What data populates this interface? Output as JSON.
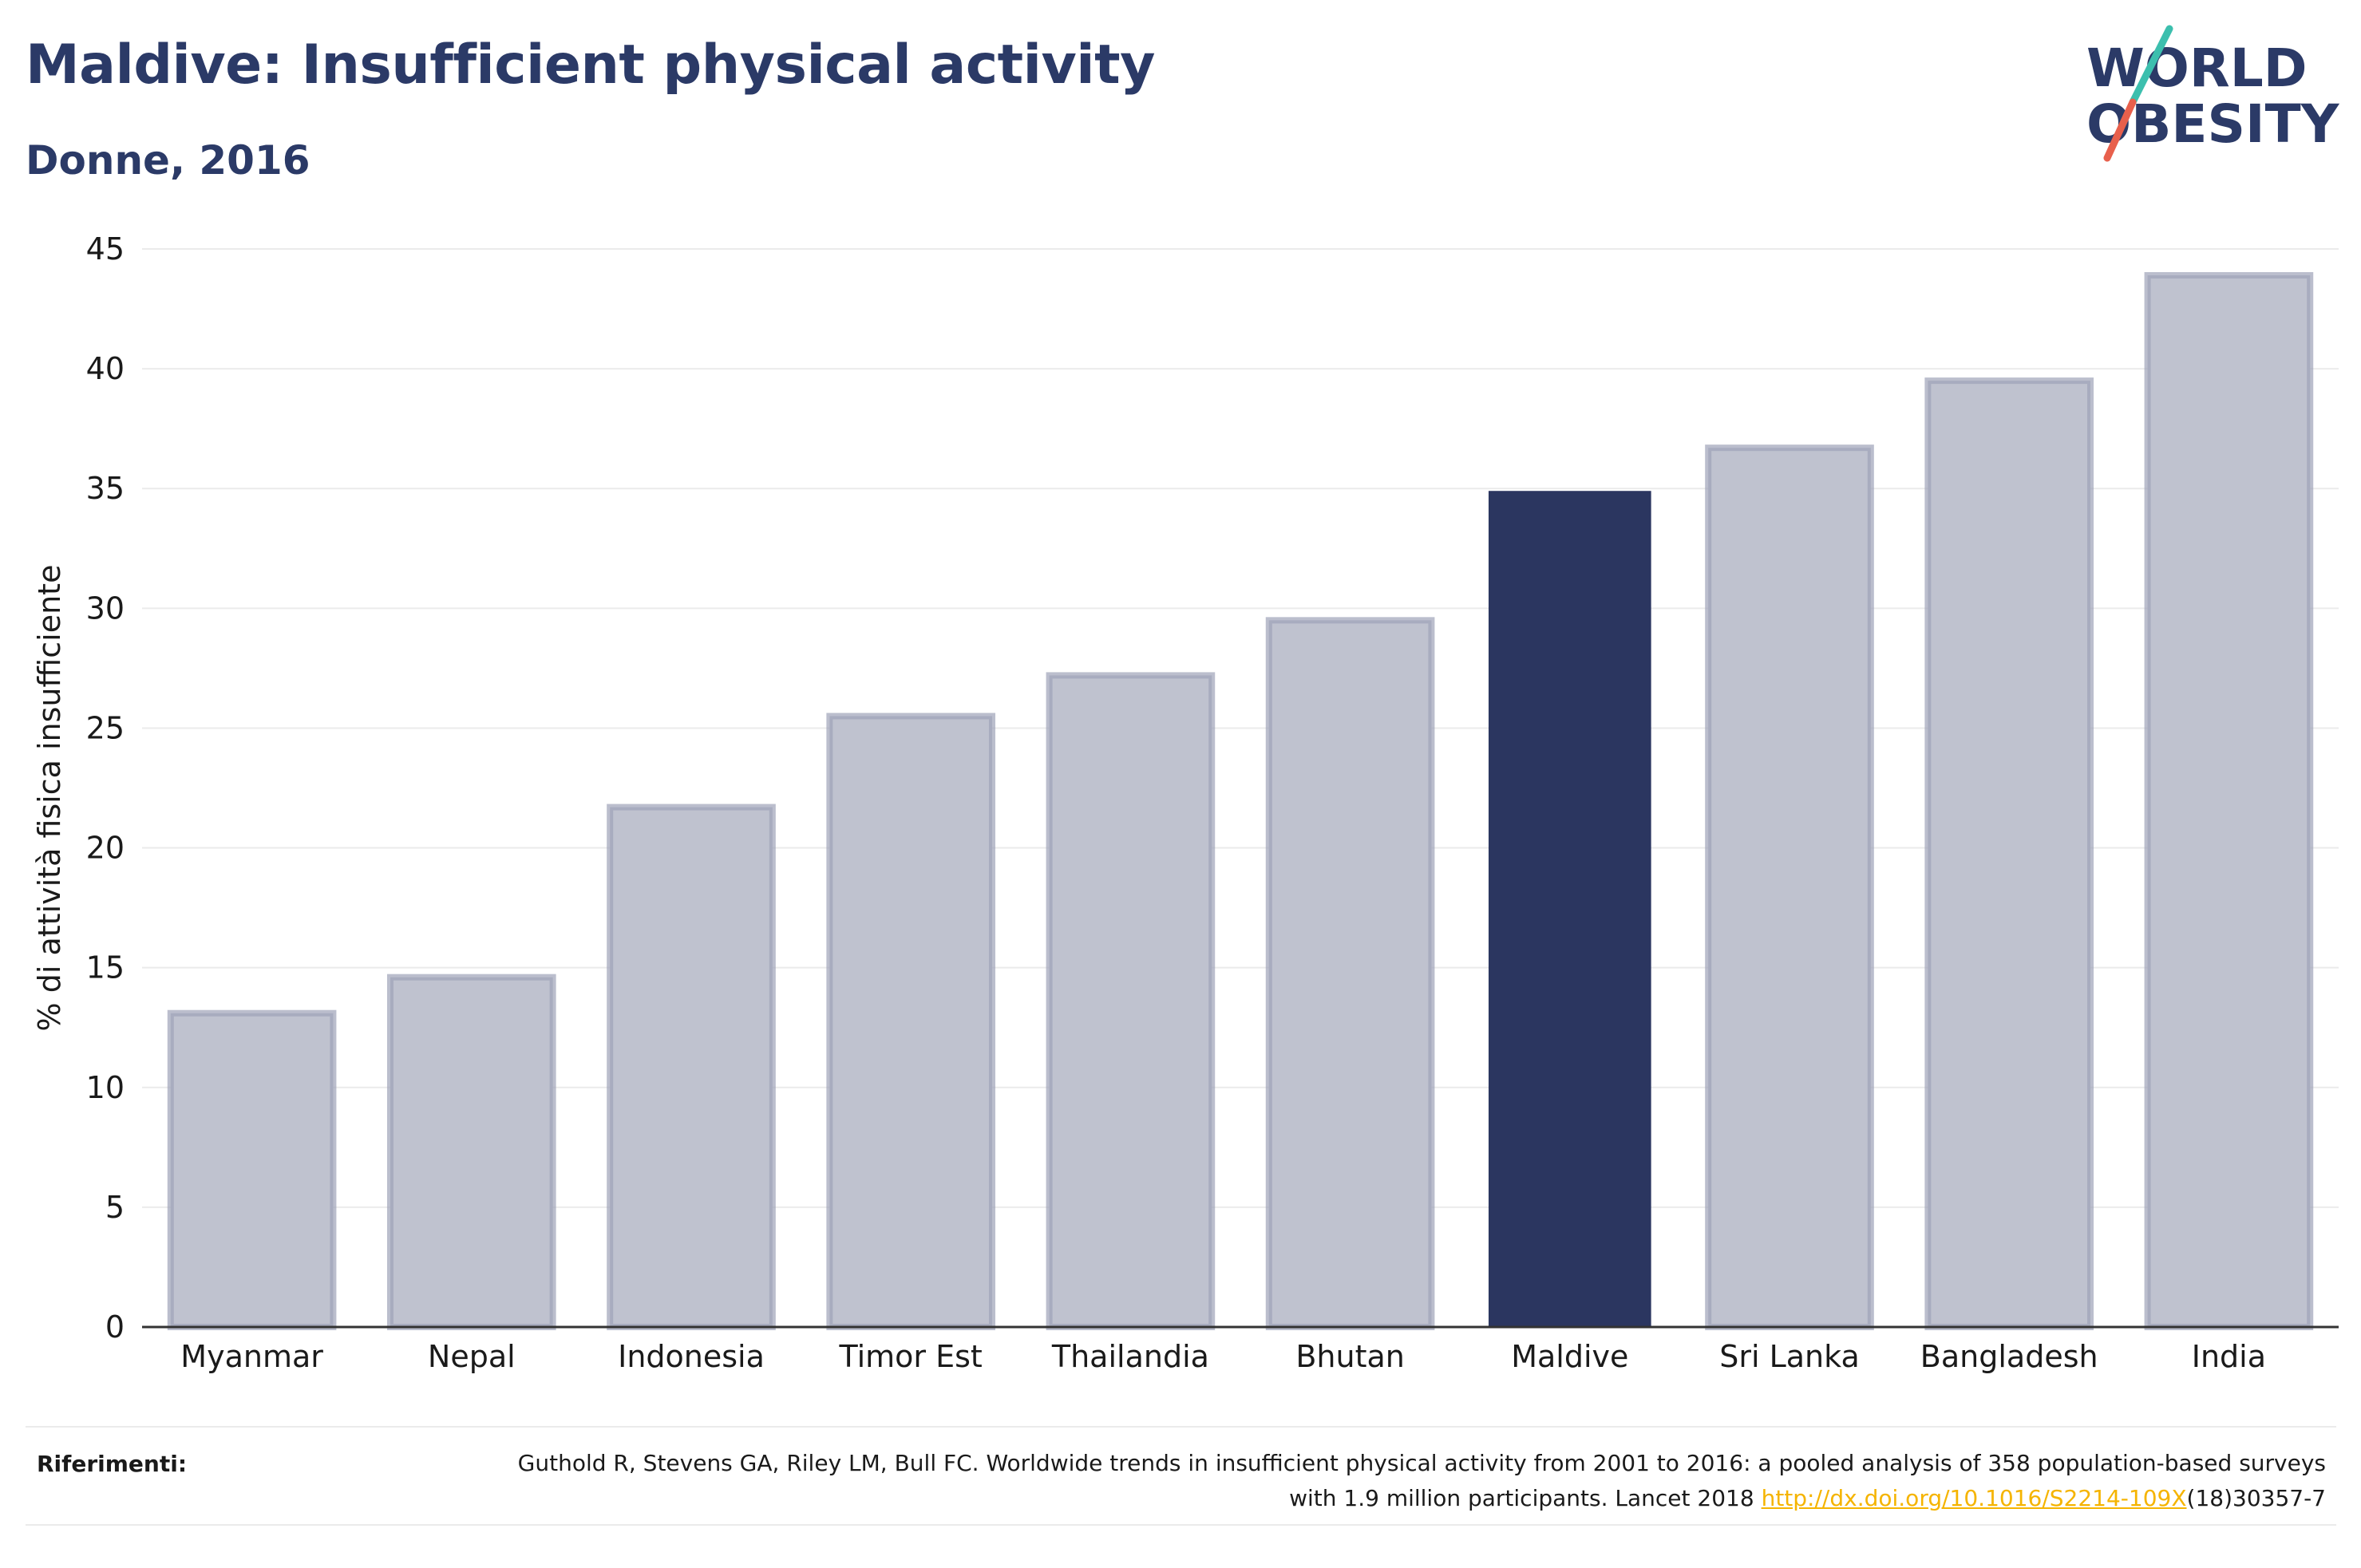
{
  "header": {
    "title": "Maldive: Insufficient physical activity",
    "subtitle": "Donne, 2016"
  },
  "logo": {
    "line1": "WORLD",
    "line2": "OBESITY",
    "colors": {
      "text": "#2b3a67",
      "slash_top": "#3cbfae",
      "slash_bottom": "#e8604c"
    }
  },
  "chart_data": {
    "type": "bar",
    "categories": [
      "Myanmar",
      "Nepal",
      "Indonesia",
      "Timor Est",
      "Thailandia",
      "Bhutan",
      "Maldive",
      "Sri Lanka",
      "Bangladesh",
      "India"
    ],
    "values": [
      13.1,
      14.6,
      21.7,
      25.5,
      27.2,
      29.5,
      34.9,
      36.7,
      39.5,
      43.9
    ],
    "highlight": "Maldive",
    "ylabel": "% di attività fisica insufficiente",
    "xlabel": "",
    "ylim": [
      0,
      45
    ],
    "yticks": [
      0,
      5,
      10,
      15,
      20,
      25,
      30,
      35,
      40,
      45
    ],
    "grid": true,
    "colors": {
      "bar": "#bfc2cf",
      "bar_border": "#9ea3b8",
      "highlight": "#2b3660",
      "grid": "#ebebeb",
      "axis": "#333333"
    }
  },
  "references": {
    "label": "Riferimenti:",
    "text_before": "Guthold R, Stevens GA, Riley LM, Bull FC. Worldwide trends in insufficient physical activity from 2001 to 2016: a pooled analysis of 358 population-based surveys with 1.9 million participants. Lancet 2018 ",
    "link_text": "http://dx.doi.org/10.1016/S2214-109X",
    "text_after": "(18)30357-7"
  }
}
